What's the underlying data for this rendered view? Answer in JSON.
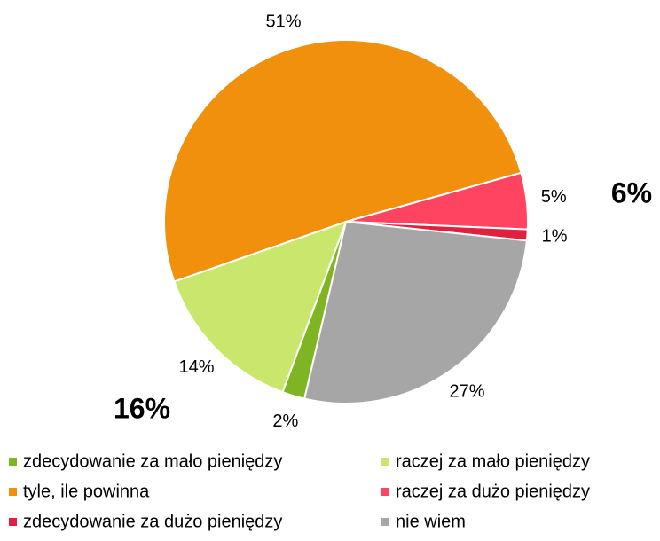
{
  "chart_data": {
    "type": "pie",
    "categories": [
      "zdecydowanie za mało pieniędzy",
      "raczej za mało pieniędzy",
      "tyle, ile powinna",
      "raczej za dużo pieniędzy",
      "zdecydowanie za dużo pieniędzy",
      "nie wiem"
    ],
    "values": [
      2,
      14,
      51,
      5,
      1,
      27
    ],
    "value_labels": [
      "2%",
      "14%",
      "51%",
      "5%",
      "1%",
      "27%"
    ],
    "colors": [
      "#7fb522",
      "#c9e76c",
      "#f0900c",
      "#ff4462",
      "#e0203e",
      "#a6a6a6"
    ],
    "annotations": [
      {
        "text": "16%",
        "color": "#4e9a1e"
      },
      {
        "text": "6%",
        "color": "#c0102a"
      }
    ],
    "legend": "bottom"
  }
}
